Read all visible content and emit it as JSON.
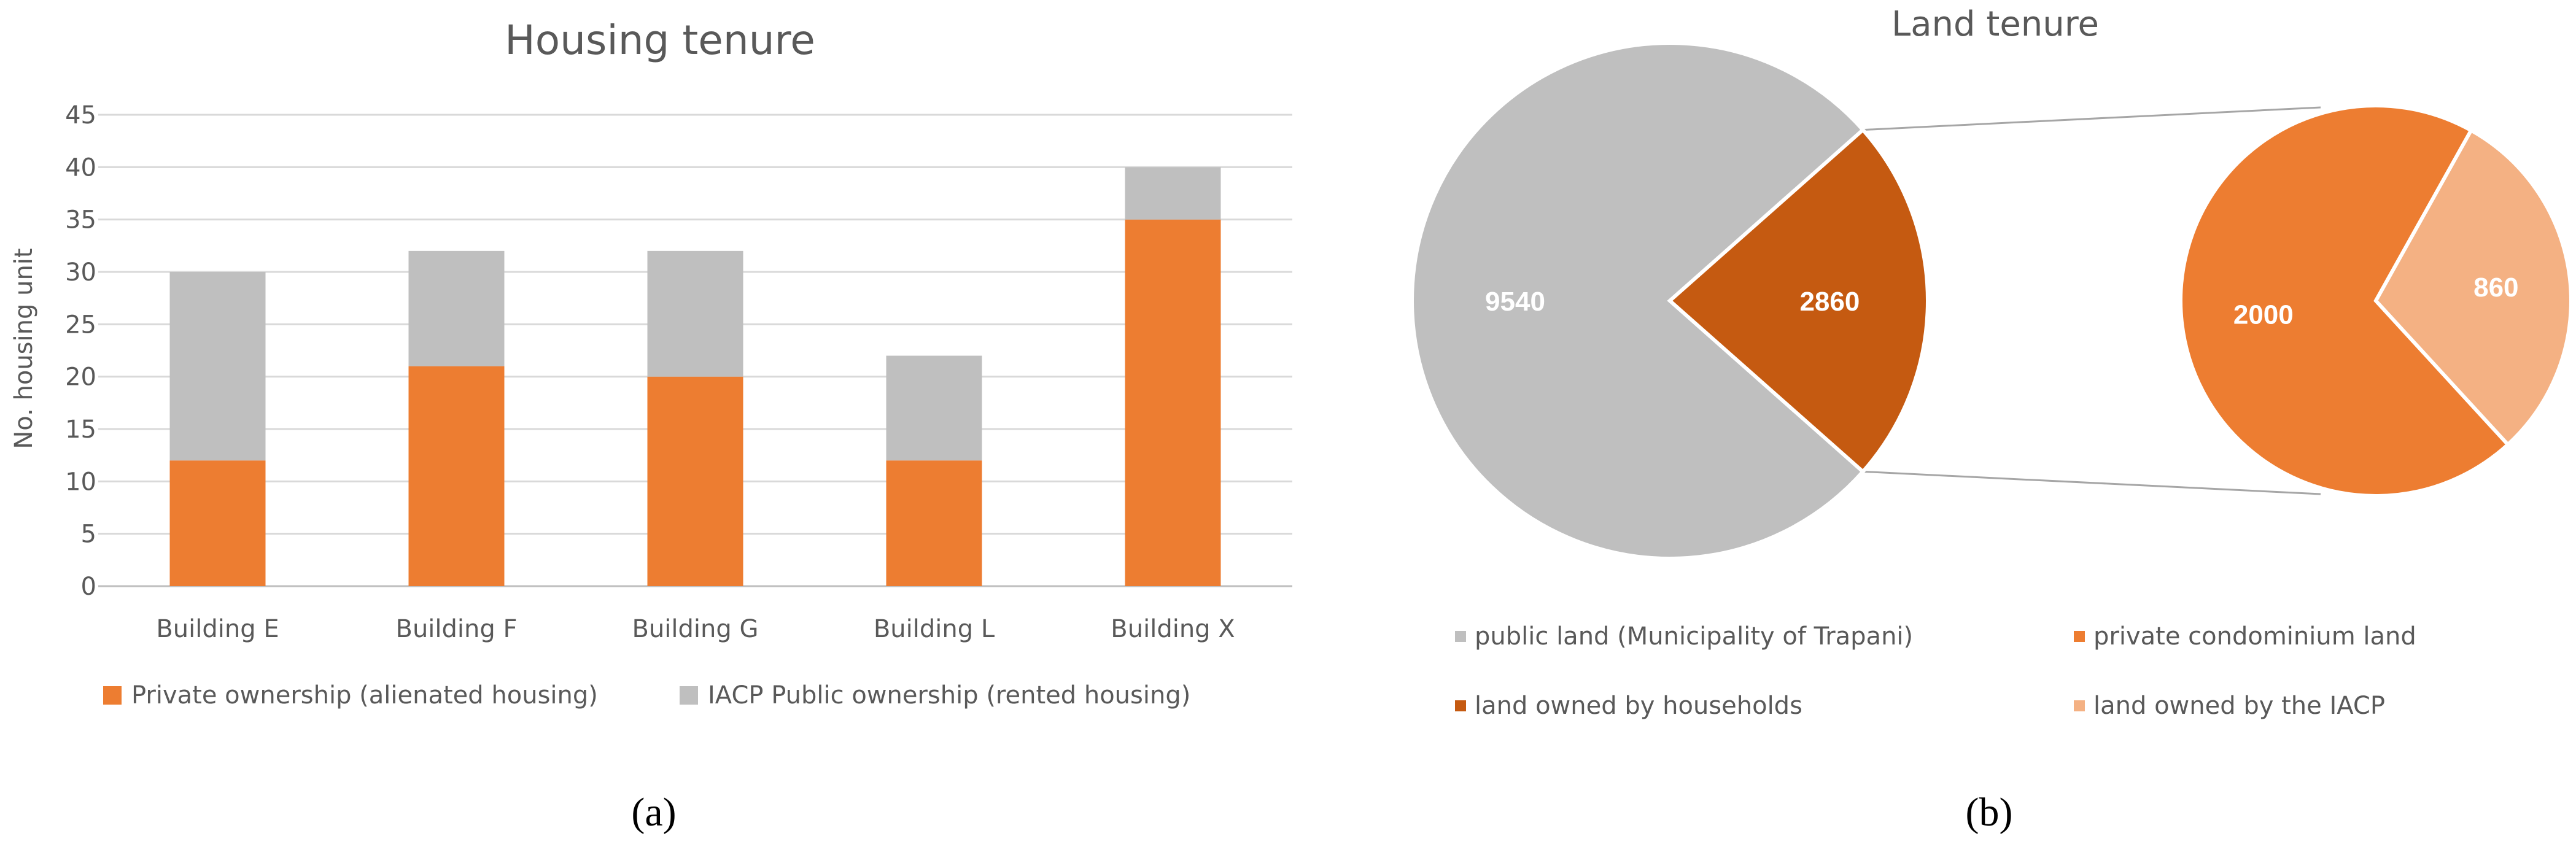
{
  "chart_data": [
    {
      "type": "bar",
      "stacked": true,
      "title": "Housing tenure",
      "ylabel": "No. housing unit",
      "xlabel": "",
      "ylim": [
        0,
        45
      ],
      "yticks": [
        "0",
        "5",
        "10",
        "15",
        "20",
        "25",
        "30",
        "35",
        "40",
        "45"
      ],
      "categories": [
        "Building E",
        "Building F",
        "Building G",
        "Building L",
        "Building X"
      ],
      "series": [
        {
          "name": "Private ownership (alienated housing)",
          "color": "#ED7D31",
          "values": [
            12,
            21,
            20,
            12,
            35
          ]
        },
        {
          "name": "IACP Public ownership (rented housing)",
          "color": "#BFBFBF",
          "values": [
            18,
            11,
            12,
            10,
            5
          ]
        }
      ],
      "grid": true,
      "legend_position": "bottom"
    },
    {
      "type": "pie",
      "subtype": "pie-of-pie",
      "title": "Land tenure",
      "main_slices": [
        {
          "label": "9540",
          "value": 9540,
          "color": "#BFBFBF"
        },
        {
          "label": "2860",
          "value": 2860,
          "color": "#C55A11"
        }
      ],
      "secondary_slices": [
        {
          "label": "2000",
          "value": 2000,
          "color": "#ED7D31"
        },
        {
          "label": "860",
          "value": 860,
          "color": "#F4B183"
        }
      ],
      "legend": [
        {
          "label": "public land (Municipality of Trapani)",
          "color": "#BFBFBF"
        },
        {
          "label": "private condominium land",
          "color": "#ED7D31"
        },
        {
          "label": "land owned by households",
          "color": "#C55A11"
        },
        {
          "label": "land owned by the IACP",
          "color": "#F4B183"
        }
      ],
      "legend_position": "bottom"
    }
  ],
  "panel_labels": {
    "a": "(a)",
    "b": "(b)"
  }
}
